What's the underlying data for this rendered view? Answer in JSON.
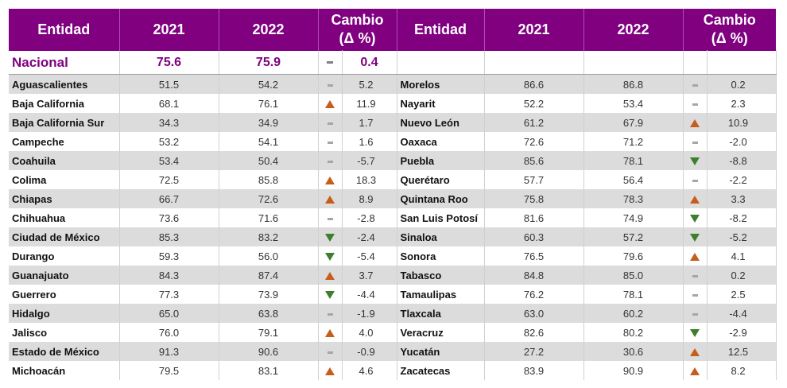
{
  "colors": {
    "header_bg": "#800080",
    "up": "#c65d1a",
    "down": "#3d7f2f",
    "equal": "#a6a6a6",
    "stripe": "#dcdcdc"
  },
  "header": {
    "entidad": "Entidad",
    "y2021": "2021",
    "y2022": "2022",
    "cambio_line1": "Cambio",
    "cambio_line2": "(Δ %)"
  },
  "nacional": {
    "name": "Nacional",
    "v2021": "75.6",
    "v2022": "75.9",
    "trend": "equal",
    "change": "0.4"
  },
  "rows": [
    {
      "left": {
        "name": "Aguascalientes",
        "v2021": "51.5",
        "v2022": "54.2",
        "trend": "equal",
        "change": "5.2"
      },
      "right": {
        "name": "Morelos",
        "v2021": "86.6",
        "v2022": "86.8",
        "trend": "equal",
        "change": "0.2"
      }
    },
    {
      "left": {
        "name": "Baja California",
        "v2021": "68.1",
        "v2022": "76.1",
        "trend": "up",
        "change": "11.9"
      },
      "right": {
        "name": "Nayarit",
        "v2021": "52.2",
        "v2022": "53.4",
        "trend": "equal",
        "change": "2.3"
      }
    },
    {
      "left": {
        "name": "Baja California Sur",
        "v2021": "34.3",
        "v2022": "34.9",
        "trend": "equal",
        "change": "1.7"
      },
      "right": {
        "name": "Nuevo León",
        "v2021": "61.2",
        "v2022": "67.9",
        "trend": "up",
        "change": "10.9"
      }
    },
    {
      "left": {
        "name": "Campeche",
        "v2021": "53.2",
        "v2022": "54.1",
        "trend": "equal",
        "change": "1.6"
      },
      "right": {
        "name": "Oaxaca",
        "v2021": "72.6",
        "v2022": "71.2",
        "trend": "equal",
        "change": "-2.0"
      }
    },
    {
      "left": {
        "name": "Coahuila",
        "v2021": "53.4",
        "v2022": "50.4",
        "trend": "equal",
        "change": "-5.7"
      },
      "right": {
        "name": "Puebla",
        "v2021": "85.6",
        "v2022": "78.1",
        "trend": "down",
        "change": "-8.8"
      }
    },
    {
      "left": {
        "name": "Colima",
        "v2021": "72.5",
        "v2022": "85.8",
        "trend": "up",
        "change": "18.3"
      },
      "right": {
        "name": "Querétaro",
        "v2021": "57.7",
        "v2022": "56.4",
        "trend": "equal",
        "change": "-2.2"
      }
    },
    {
      "left": {
        "name": "Chiapas",
        "v2021": "66.7",
        "v2022": "72.6",
        "trend": "up",
        "change": "8.9"
      },
      "right": {
        "name": "Quintana Roo",
        "v2021": "75.8",
        "v2022": "78.3",
        "trend": "up",
        "change": "3.3"
      }
    },
    {
      "left": {
        "name": "Chihuahua",
        "v2021": "73.6",
        "v2022": "71.6",
        "trend": "equal",
        "change": "-2.8"
      },
      "right": {
        "name": "San Luis Potosí",
        "v2021": "81.6",
        "v2022": "74.9",
        "trend": "down",
        "change": "-8.2"
      }
    },
    {
      "left": {
        "name": "Ciudad de México",
        "v2021": "85.3",
        "v2022": "83.2",
        "trend": "down",
        "change": "-2.4"
      },
      "right": {
        "name": "Sinaloa",
        "v2021": "60.3",
        "v2022": "57.2",
        "trend": "down",
        "change": "-5.2"
      }
    },
    {
      "left": {
        "name": "Durango",
        "v2021": "59.3",
        "v2022": "56.0",
        "trend": "down",
        "change": "-5.4"
      },
      "right": {
        "name": "Sonora",
        "v2021": "76.5",
        "v2022": "79.6",
        "trend": "up",
        "change": "4.1"
      }
    },
    {
      "left": {
        "name": "Guanajuato",
        "v2021": "84.3",
        "v2022": "87.4",
        "trend": "up",
        "change": "3.7"
      },
      "right": {
        "name": "Tabasco",
        "v2021": "84.8",
        "v2022": "85.0",
        "trend": "equal",
        "change": "0.2"
      }
    },
    {
      "left": {
        "name": "Guerrero",
        "v2021": "77.3",
        "v2022": "73.9",
        "trend": "down",
        "change": "-4.4"
      },
      "right": {
        "name": "Tamaulipas",
        "v2021": "76.2",
        "v2022": "78.1",
        "trend": "equal",
        "change": "2.5"
      }
    },
    {
      "left": {
        "name": "Hidalgo",
        "v2021": "65.0",
        "v2022": "63.8",
        "trend": "equal",
        "change": "-1.9"
      },
      "right": {
        "name": "Tlaxcala",
        "v2021": "63.0",
        "v2022": "60.2",
        "trend": "equal",
        "change": "-4.4"
      }
    },
    {
      "left": {
        "name": "Jalisco",
        "v2021": "76.0",
        "v2022": "79.1",
        "trend": "up",
        "change": "4.0"
      },
      "right": {
        "name": "Veracruz",
        "v2021": "82.6",
        "v2022": "80.2",
        "trend": "down",
        "change": "-2.9"
      }
    },
    {
      "left": {
        "name": "Estado de México",
        "v2021": "91.3",
        "v2022": "90.6",
        "trend": "equal",
        "change": "-0.9"
      },
      "right": {
        "name": "Yucatán",
        "v2021": "27.2",
        "v2022": "30.6",
        "trend": "up",
        "change": "12.5"
      }
    },
    {
      "left": {
        "name": "Michoacán",
        "v2021": "79.5",
        "v2022": "83.1",
        "trend": "up",
        "change": "4.6"
      },
      "right": {
        "name": "Zacatecas",
        "v2021": "83.9",
        "v2022": "90.9",
        "trend": "up",
        "change": "8.2"
      }
    }
  ]
}
